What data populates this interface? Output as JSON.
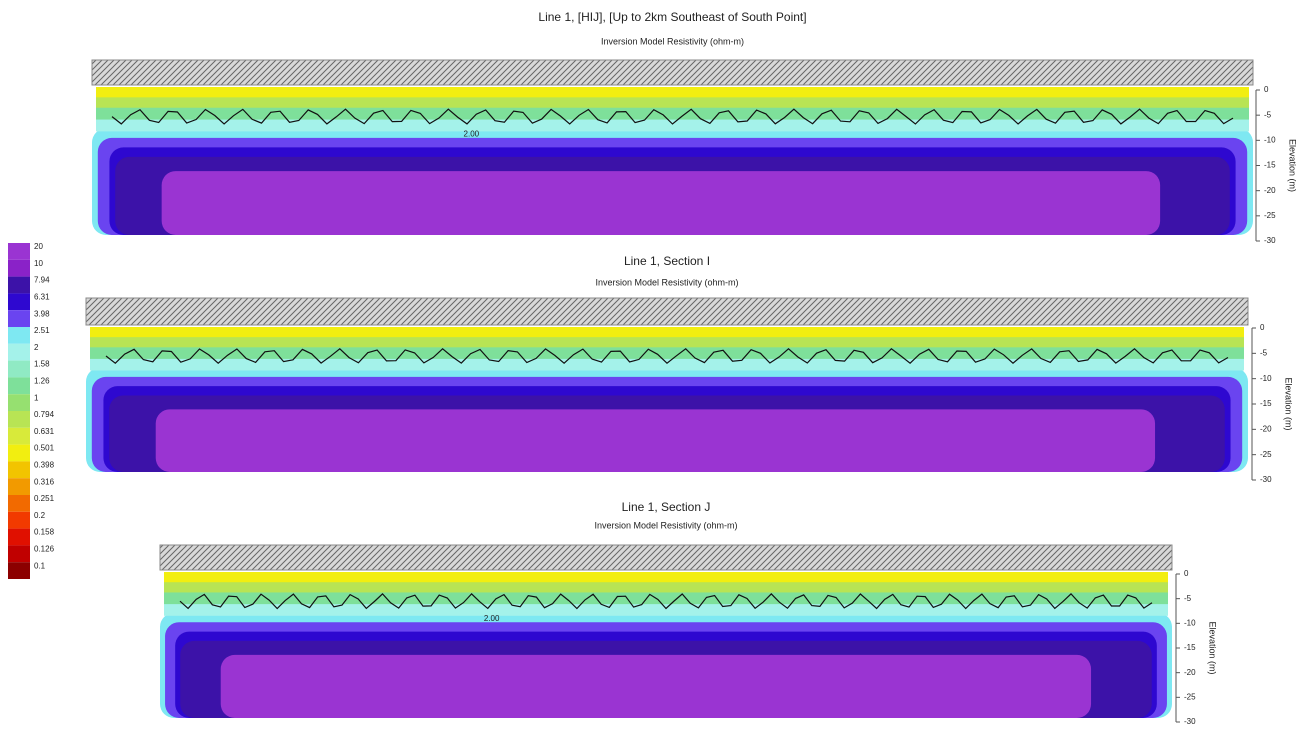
{
  "colorbar": {
    "levels": [
      20,
      10,
      7.94,
      6.31,
      3.98,
      2.51,
      2,
      1.58,
      1.26,
      1,
      0.794,
      0.631,
      0.501,
      0.398,
      0.316,
      0.251,
      0.2,
      0.158,
      0.126,
      0.1
    ],
    "colors": [
      "#9a34d2",
      "#8a22c8",
      "#3c12a8",
      "#2e08d0",
      "#6a44f0",
      "#7ee8f2",
      "#a4f2ea",
      "#90eac4",
      "#7ee09a",
      "#96e070",
      "#b8e454",
      "#d8ea3a",
      "#f2ee10",
      "#f2c400",
      "#f29a00",
      "#f26a00",
      "#f23a00",
      "#e01000",
      "#c00000",
      "#8c0000"
    ]
  },
  "chart_data": [
    {
      "type": "contour",
      "title": "Line 1, [HIJ], [Up to 2km Southeast of South Point]",
      "subtitle": "Inversion Model Resistivity (ohm-m)",
      "ylabel": "Elevation (m)",
      "ylim": [
        -30,
        0
      ],
      "yticks": [
        0,
        -5,
        -10,
        -15,
        -20,
        -25,
        -30
      ],
      "contour_label": "2.00"
    },
    {
      "type": "contour",
      "title": "Line 1, Section I",
      "subtitle": "Inversion Model Resistivity (ohm-m)",
      "ylabel": "Elevation (m)",
      "ylim": [
        -30,
        0
      ],
      "yticks": [
        0,
        -5,
        -10,
        -15,
        -20,
        -25,
        -30
      ]
    },
    {
      "type": "contour",
      "title": "Line 1, Section J",
      "subtitle": "Inversion Model Resistivity (ohm-m)",
      "ylabel": "Elevation (m)",
      "ylim": [
        -30,
        0
      ],
      "yticks": [
        0,
        -5,
        -10,
        -15,
        -20,
        -25,
        -30
      ],
      "contour_label": "2.00"
    }
  ]
}
